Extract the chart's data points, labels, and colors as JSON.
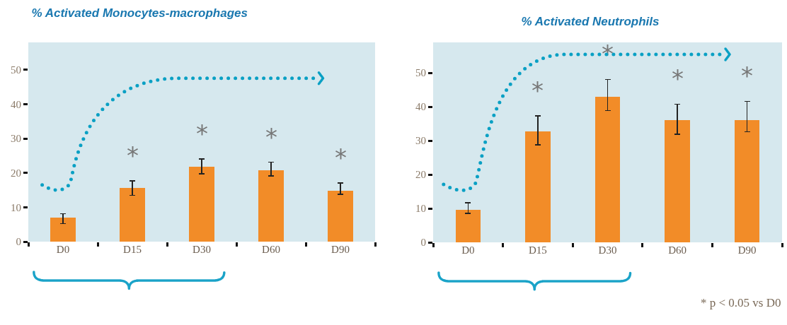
{
  "chart_data": [
    {
      "type": "bar",
      "title": "% Activated Monocytes-macrophages",
      "categories": [
        "D0",
        "D15",
        "D30",
        "D60",
        "D90"
      ],
      "values": [
        7.0,
        15.6,
        21.8,
        20.8,
        14.9
      ],
      "errors": [
        [
          5.2,
          8.1
        ],
        [
          13.5,
          17.7
        ],
        [
          19.7,
          24.1
        ],
        [
          19.1,
          23.1
        ],
        [
          13.8,
          17.1
        ]
      ],
      "color": "#f28c28",
      "ylim": [
        0,
        58
      ],
      "yticks": [
        0,
        10,
        20,
        30,
        40,
        50
      ],
      "grid": false,
      "annotations": [
        {
          "text": "*",
          "x": "D15",
          "y": 17.7
        },
        {
          "text": "*",
          "x": "D30",
          "y": 24.1
        },
        {
          "text": "*",
          "x": "D60",
          "y": 23.1
        },
        {
          "text": "*",
          "x": "D90",
          "y": 17.1
        }
      ]
    },
    {
      "type": "bar",
      "title": "% Activated Neutrophils",
      "categories": [
        "D0",
        "D15",
        "D30",
        "D60",
        "D90"
      ],
      "values": [
        9.5,
        32.8,
        43.0,
        36.0,
        36.1
      ],
      "errors": [
        [
          8.6,
          11.7
        ],
        [
          28.8,
          37.3
        ],
        [
          38.9,
          48.1
        ],
        [
          31.9,
          40.8
        ],
        [
          32.6,
          41.6
        ]
      ],
      "color": "#f28c28",
      "ylim": [
        0,
        59
      ],
      "yticks": [
        0,
        10,
        20,
        30,
        40,
        50
      ],
      "grid": false,
      "annotations": [
        {
          "text": "*",
          "x": "D15",
          "y": 37.3
        },
        {
          "text": "*",
          "x": "D30",
          "y": 48.1
        },
        {
          "text": "*",
          "x": "D60",
          "y": 40.8
        },
        {
          "text": "*",
          "x": "D90",
          "y": 41.6
        },
        "* p < 0.05 vs D0"
      ]
    }
  ]
}
